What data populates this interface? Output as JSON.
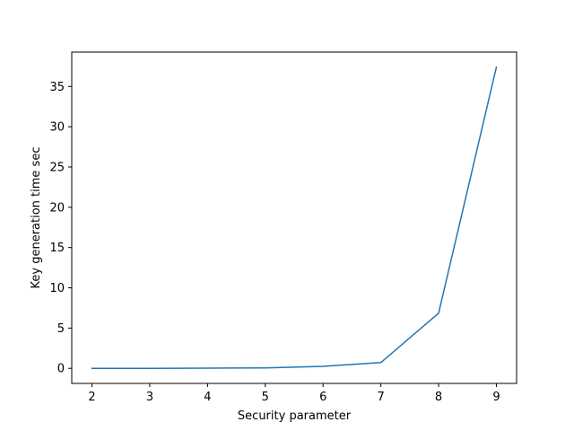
{
  "chart_data": {
    "type": "line",
    "title": "",
    "xlabel": "Security parameter",
    "ylabel": "Key generation time sec",
    "x": [
      2,
      3,
      4,
      5,
      6,
      7,
      8,
      9
    ],
    "series": [
      {
        "values": [
          0.0,
          0.0,
          0.02,
          0.06,
          0.25,
          0.72,
          6.85,
          37.4
        ],
        "color": "#1f77b4"
      }
    ],
    "xticks": [
      2,
      3,
      4,
      5,
      6,
      7,
      8,
      9
    ],
    "yticks": [
      0,
      5,
      10,
      15,
      20,
      25,
      30,
      35
    ],
    "xlim": [
      1.65,
      9.35
    ],
    "ylim": [
      -1.87,
      39.27
    ],
    "grid": false,
    "legend": "none"
  }
}
